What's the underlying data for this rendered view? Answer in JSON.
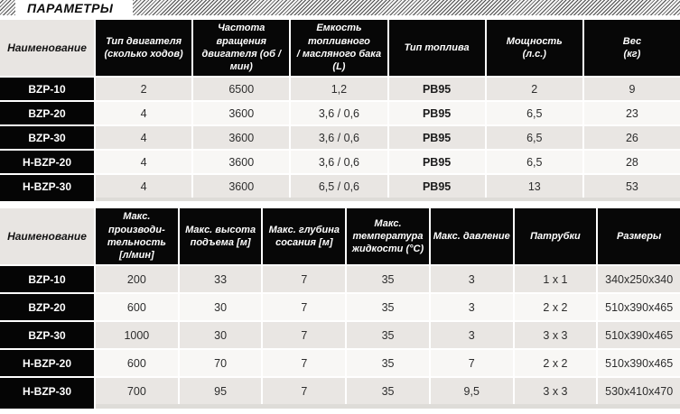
{
  "page": {
    "title": "ПАРАМЕТРЫ"
  },
  "table1": {
    "headers": [
      "Наименование",
      "Тип двигателя\n(сколько ходов)",
      "Частота вращения\nдвигателя (об / мин)",
      "Емкость топливного\n/ масляного бака (L)",
      "Тип топлива",
      "Мощность\n(л.с.)",
      "Вес\n(кг)"
    ],
    "rows": [
      {
        "name": "BZP-10",
        "values": [
          "2",
          "6500",
          "1,2",
          "PB95",
          "2",
          "9"
        ]
      },
      {
        "name": "BZP-20",
        "values": [
          "4",
          "3600",
          "3,6 / 0,6",
          "PB95",
          "6,5",
          "23"
        ]
      },
      {
        "name": "BZP-30",
        "values": [
          "4",
          "3600",
          "3,6 / 0,6",
          "PB95",
          "6,5",
          "26"
        ]
      },
      {
        "name": "H-BZP-20",
        "values": [
          "4",
          "3600",
          "3,6 / 0,6",
          "PB95",
          "6,5",
          "28"
        ]
      },
      {
        "name": "H-BZP-30",
        "values": [
          "4",
          "3600",
          "6,5 / 0,6",
          "PB95",
          "13",
          "53"
        ]
      }
    ]
  },
  "table2": {
    "headers": [
      "Наименование",
      "Макс. производи-\nтельность\n[л/мин]",
      "Макс. высота\nподъема [м]",
      "Макс. глубина\nсосания [м]",
      "Макс.\nтемпература\nжидкости (°C)",
      "Макс. давление",
      "Патрубки",
      "Размеры"
    ],
    "rows": [
      {
        "name": "BZP-10",
        "values": [
          "200",
          "33",
          "7",
          "35",
          "3",
          "1 x 1",
          "340x250x340"
        ]
      },
      {
        "name": "BZP-20",
        "values": [
          "600",
          "30",
          "7",
          "35",
          "3",
          "2 x 2",
          "510x390x465"
        ]
      },
      {
        "name": "BZP-30",
        "values": [
          "1000",
          "30",
          "7",
          "35",
          "3",
          "3 x 3",
          "510x390x465"
        ]
      },
      {
        "name": "H-BZP-20",
        "values": [
          "600",
          "70",
          "7",
          "35",
          "7",
          "2 x 2",
          "510x390x465"
        ]
      },
      {
        "name": "H-BZP-30",
        "values": [
          "700",
          "95",
          "7",
          "35",
          "9,5",
          "3 x 3",
          "530x410x470"
        ]
      }
    ]
  }
}
